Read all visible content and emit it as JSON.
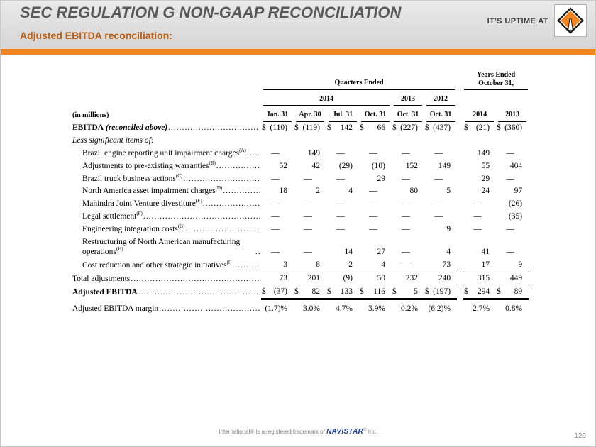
{
  "colors": {
    "accent_orange": "#F5831F",
    "title_gray": "#595959",
    "subtitle_orange": "#BC5D11",
    "navistar_blue": "#21409A"
  },
  "header": {
    "title": "SEC REGULATION G NON-GAAP RECONCILIATION",
    "subtitle": "Adjusted EBITDA reconciliation:",
    "tagline": "IT'S UPTIME AT"
  },
  "table": {
    "quarters_heading": "Quarters Ended",
    "years_heading": "Years Ended October 31,",
    "year_groups": [
      {
        "label": "2014",
        "span": 4
      },
      {
        "label": "2013",
        "span": 1
      },
      {
        "label": "2012",
        "span": 1
      }
    ],
    "in_millions": "(in millions)",
    "quarter_columns": [
      "Jan. 31",
      "Apr. 30",
      "Jul. 31",
      "Oct. 31",
      "Oct. 31",
      "Oct. 31"
    ],
    "year_columns": [
      "2014",
      "2013"
    ],
    "rows": [
      {
        "label": "EBITDA",
        "label_italic": " (reconciled above)",
        "bold": true,
        "dollar": true,
        "leader": true,
        "indent": false,
        "rule": "",
        "values": [
          "(110)",
          "(119)",
          "142",
          "66",
          "(227)",
          "(437)",
          "(21)",
          "(360)"
        ]
      },
      {
        "label": "Less significant items of:",
        "italic": true,
        "leader": false,
        "indent": false,
        "rule": "",
        "values": null
      },
      {
        "label": "Brazil engine reporting unit impairment charges",
        "sup": "(A)",
        "indent": true,
        "leader": true,
        "rule": "",
        "values": [
          "—",
          "149",
          "—",
          "—",
          "—",
          "—",
          "149",
          "—"
        ]
      },
      {
        "label": "Adjustments to pre-existing warranties",
        "sup": "(B)",
        "indent": true,
        "leader": true,
        "rule": "",
        "values": [
          "52",
          "42",
          "(29)",
          "(10)",
          "152",
          "149",
          "55",
          "404"
        ]
      },
      {
        "label": "Brazil truck business actions",
        "sup": "(C)",
        "indent": true,
        "leader": true,
        "rule": "",
        "values": [
          "—",
          "—",
          "—",
          "29",
          "—",
          "—",
          "29",
          "—"
        ]
      },
      {
        "label": "North America asset impairment charges",
        "sup": "(D)",
        "indent": true,
        "leader": true,
        "rule": "",
        "values": [
          "18",
          "2",
          "4",
          "—",
          "80",
          "5",
          "24",
          "97"
        ]
      },
      {
        "label": "Mahindra Joint Venture divestiture",
        "sup": "(E)",
        "indent": true,
        "leader": true,
        "rule": "",
        "values": [
          "—",
          "—",
          "—",
          "—",
          "—",
          "—",
          "—",
          "(26)"
        ]
      },
      {
        "label": "Legal settlement",
        "sup": "(F)",
        "indent": true,
        "leader": true,
        "rule": "",
        "values": [
          "—",
          "—",
          "—",
          "—",
          "—",
          "—",
          "—",
          "(35)"
        ]
      },
      {
        "label": "Engineering integration costs",
        "sup": "(G)",
        "indent": true,
        "leader": true,
        "rule": "",
        "values": [
          "—",
          "—",
          "—",
          "—",
          "—",
          "9",
          "—",
          "—"
        ]
      },
      {
        "label": "Restructuring of North American manufacturing operations",
        "sup": "(H)",
        "indent": true,
        "leader": true,
        "rule": "",
        "values": [
          "—",
          "—",
          "14",
          "27",
          "—",
          "4",
          "41",
          "—"
        ]
      },
      {
        "label": "Cost reduction and other strategic initiatives",
        "sup": "(I)",
        "indent": true,
        "leader": true,
        "rule": "single",
        "values": [
          "3",
          "8",
          "2",
          "4",
          "—",
          "73",
          "17",
          "9"
        ]
      },
      {
        "label": "Total adjustments",
        "indent": false,
        "leader": true,
        "rule": "single",
        "values": [
          "73",
          "201",
          "(9)",
          "50",
          "232",
          "240",
          "315",
          "449"
        ]
      },
      {
        "label": "Adjusted EBITDA",
        "bold": true,
        "dollar": true,
        "leader": true,
        "indent": false,
        "rule": "double",
        "values": [
          "(37)",
          "82",
          "133",
          "116",
          "5",
          "(197)",
          "294",
          "89"
        ]
      },
      {
        "label": "Adjusted EBITDA margin",
        "indent": false,
        "leader": true,
        "rule": "",
        "values": [
          "(1.7)%",
          "3.0%",
          "4.7%",
          "3.9%",
          "0.2%",
          "(6.2)%",
          "2.7%",
          "0.8%"
        ]
      }
    ]
  },
  "footer": {
    "prefix": "International® is a registered trademark of",
    "brand": "NAVISTAR",
    "reg": "®",
    "suffix": "Inc.",
    "page_number": "129"
  }
}
